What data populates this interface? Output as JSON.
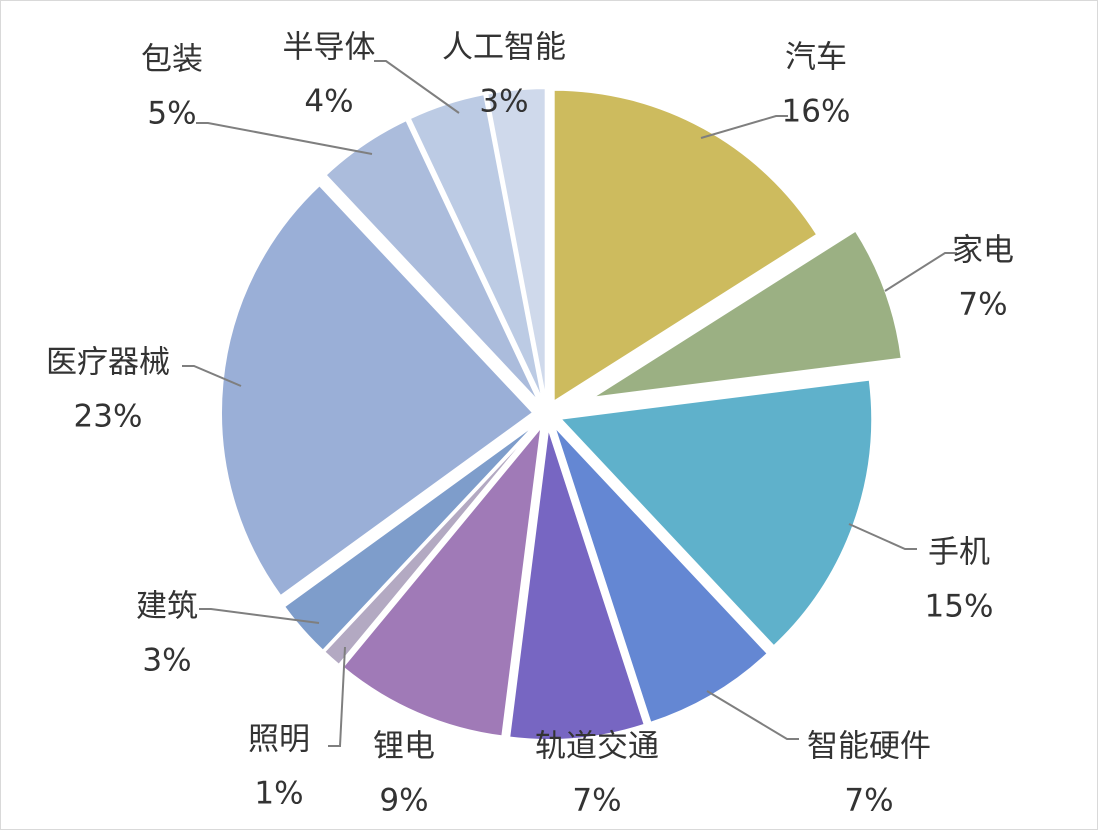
{
  "chart_data": {
    "type": "pie",
    "title": "",
    "slices": [
      {
        "label": "汽车",
        "value": 16,
        "value_label": "16%",
        "color": "#cdbb5e"
      },
      {
        "label": "家电",
        "value": 7,
        "value_label": "7%",
        "color": "#9bb083"
      },
      {
        "label": "手机",
        "value": 15,
        "value_label": "15%",
        "color": "#5fb1cb"
      },
      {
        "label": "智能硬件",
        "value": 7,
        "value_label": "7%",
        "color": "#6487d3"
      },
      {
        "label": "轨道交通",
        "value": 7,
        "value_label": "7%",
        "color": "#7766c2"
      },
      {
        "label": "锂电",
        "value": 9,
        "value_label": "9%",
        "color": "#a07ab7"
      },
      {
        "label": "照明",
        "value": 1,
        "value_label": "1%",
        "color": "#b3a9c2"
      },
      {
        "label": "建筑",
        "value": 3,
        "value_label": "3%",
        "color": "#7e9dcb"
      },
      {
        "label": "医疗器械",
        "value": 23,
        "value_label": "23%",
        "color": "#9aafd7"
      },
      {
        "label": "包装",
        "value": 5,
        "value_label": "5%",
        "color": "#abbcdc"
      },
      {
        "label": "半导体",
        "value": 4,
        "value_label": "4%",
        "color": "#bccbe4"
      },
      {
        "label": "人工智能",
        "value": 3,
        "value_label": "3%",
        "color": "#cfd9eb"
      }
    ],
    "legend": "none",
    "start_angle": "12 o'clock",
    "direction": "clockwise",
    "leader_line_color": "#7f7f7f"
  }
}
